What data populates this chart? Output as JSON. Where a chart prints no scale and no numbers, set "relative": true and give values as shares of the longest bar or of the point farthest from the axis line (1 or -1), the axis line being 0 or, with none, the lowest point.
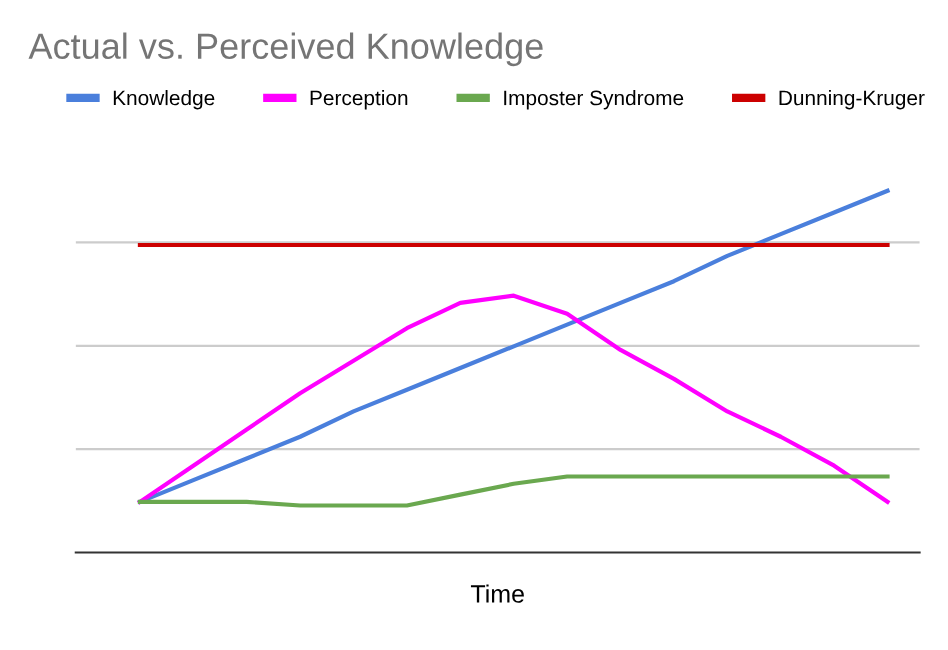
{
  "chart_data": {
    "type": "line",
    "title": "Actual vs. Perceived Knowledge",
    "xlabel": "Time",
    "relative": true,
    "grid": "y",
    "legend": "top",
    "categories": [
      null,
      null,
      null,
      null,
      null,
      null,
      null,
      null,
      null,
      null,
      null,
      null,
      null,
      null,
      null
    ],
    "series": [
      {
        "name": "Knowledge",
        "color": "#4a7fdc",
        "values": [
          0.14,
          0.2,
          0.26,
          0.32,
          0.39,
          0.45,
          0.51,
          0.57,
          0.63,
          0.69,
          0.75,
          0.82,
          0.88,
          0.94,
          1.0
        ]
      },
      {
        "name": "Perception",
        "color": "#ff00ff",
        "values": [
          0.14,
          0.24,
          0.34,
          0.44,
          0.53,
          0.62,
          0.69,
          0.71,
          0.66,
          0.56,
          0.48,
          0.39,
          0.32,
          0.24,
          0.14
        ]
      },
      {
        "name": "Imposter Syndrome",
        "color": "#6aa84f",
        "values": [
          0.14,
          0.14,
          0.14,
          0.13,
          0.13,
          0.13,
          0.16,
          0.19,
          0.21,
          0.21,
          0.21,
          0.21,
          0.21,
          0.21,
          0.21
        ]
      },
      {
        "name": "Dunning-Kruger",
        "color": "#cc0000",
        "values": [
          0.85,
          0.85,
          0.85,
          0.85,
          0.85,
          0.85,
          0.85,
          0.85,
          0.85,
          0.85,
          0.85,
          0.85,
          0.85,
          0.85,
          0.85
        ]
      }
    ]
  }
}
